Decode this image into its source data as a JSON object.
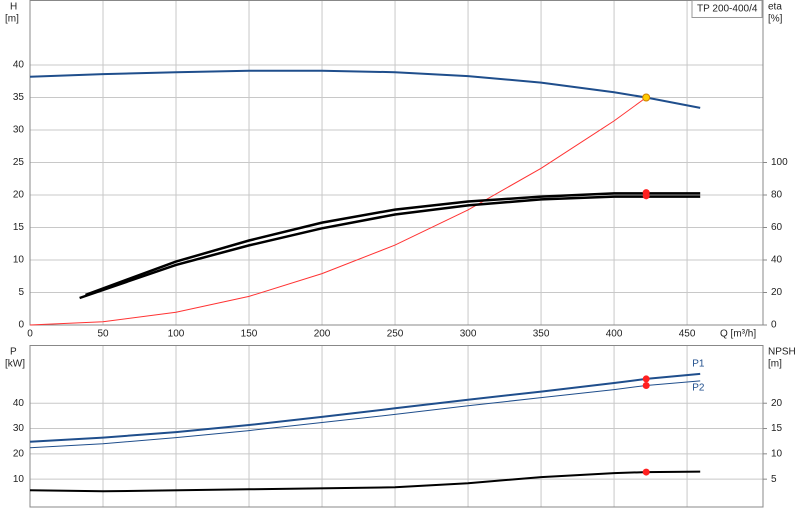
{
  "chart_data": [
    {
      "type": "line",
      "title": "TP 200-400/4",
      "xlabel": "Q [m³/h]",
      "ylabel": "H",
      "yunit": "[m]",
      "y2label": "eta",
      "y2unit": "[%]",
      "xlim": [
        0,
        502
      ],
      "ylim": [
        0,
        50
      ],
      "y2lim": [
        0,
        200
      ],
      "xticks": [
        0,
        50,
        100,
        150,
        200,
        250,
        300,
        350,
        400,
        450
      ],
      "yticks": [
        0,
        5,
        10,
        15,
        20,
        25,
        30,
        35,
        40
      ],
      "y2ticks": [
        0,
        20,
        40,
        60,
        80,
        100
      ],
      "grid": true,
      "series": [
        {
          "color": "#1f4e8c",
          "width": 2,
          "axis": "y",
          "x": [
            0,
            50,
            100,
            150,
            200,
            250,
            300,
            350,
            400,
            422,
            459
          ],
          "values": [
            38.2,
            38.6,
            38.9,
            39.1,
            39.1,
            38.9,
            38.3,
            37.3,
            35.8,
            35,
            33.4
          ]
        },
        {
          "color": "#ff3333",
          "width": 1,
          "axis": "y",
          "x": [
            0,
            50,
            100,
            150,
            200,
            250,
            300,
            350,
            400,
            422
          ],
          "values": [
            0,
            0.49,
            1.97,
            4.4,
            7.9,
            12.3,
            17.7,
            24.1,
            31.4,
            35
          ]
        },
        {
          "color": "#000000",
          "width": 2.5,
          "axis": "y2",
          "x": [
            38,
            100,
            150,
            200,
            250,
            300,
            350,
            400,
            459
          ],
          "values": [
            18.5,
            39,
            52,
            63,
            71,
            76,
            79,
            81,
            81
          ]
        },
        {
          "color": "#000000",
          "width": 2.5,
          "axis": "y2",
          "x": [
            34,
            100,
            150,
            200,
            250,
            300,
            350,
            400,
            459
          ],
          "values": [
            16.6,
            37,
            49,
            59.5,
            68,
            73.6,
            77.3,
            79,
            79
          ]
        }
      ],
      "points": [
        {
          "x": 422,
          "y": 35,
          "axis": "y",
          "color": "#ffcc00"
        },
        {
          "x": 422,
          "y": 81.5,
          "axis": "y2",
          "color": "#ff2020"
        },
        {
          "x": 422,
          "y": 79.5,
          "axis": "y2",
          "color": "#ff2020"
        }
      ]
    },
    {
      "type": "line",
      "ylabel": "P",
      "yunit": "[kW]",
      "y2label": "NPSH",
      "y2unit": "[m]",
      "xlim": [
        0,
        502
      ],
      "ylim": [
        -1,
        63
      ],
      "y2lim": [
        -0.5,
        31.5
      ],
      "yticks": [
        10,
        20,
        30,
        40
      ],
      "y2ticks": [
        5,
        10,
        15,
        20
      ],
      "grid": true,
      "series": [
        {
          "name": "P1",
          "color": "#1f4e8c",
          "width": 2,
          "axis": "y",
          "x": [
            0,
            50,
            100,
            150,
            200,
            250,
            300,
            350,
            400,
            422,
            459
          ],
          "values": [
            24.8,
            26.4,
            28.6,
            31.4,
            34.6,
            38,
            41.4,
            44.6,
            48,
            49.6,
            51.6
          ]
        },
        {
          "name": "P2",
          "color": "#1f4e8c",
          "width": 1,
          "axis": "y",
          "x": [
            0,
            50,
            100,
            150,
            200,
            250,
            300,
            350,
            400,
            422,
            459
          ],
          "values": [
            22.4,
            24,
            26.4,
            29.2,
            32.4,
            35.6,
            39,
            42.2,
            45.4,
            47,
            48.8
          ]
        },
        {
          "color": "#000000",
          "width": 2,
          "axis": "y2",
          "x": [
            0,
            50,
            150,
            250,
            300,
            350,
            400,
            422,
            459
          ],
          "values": [
            2.8,
            2.6,
            3.0,
            3.4,
            4.2,
            5.4,
            6.2,
            6.4,
            6.5
          ]
        }
      ],
      "points": [
        {
          "x": 422,
          "y": 49.6,
          "axis": "y",
          "color": "#ff2020"
        },
        {
          "x": 422,
          "y": 47,
          "axis": "y",
          "color": "#ff2020"
        },
        {
          "x": 422,
          "y": 6.4,
          "axis": "y2",
          "color": "#ff2020"
        }
      ]
    }
  ]
}
